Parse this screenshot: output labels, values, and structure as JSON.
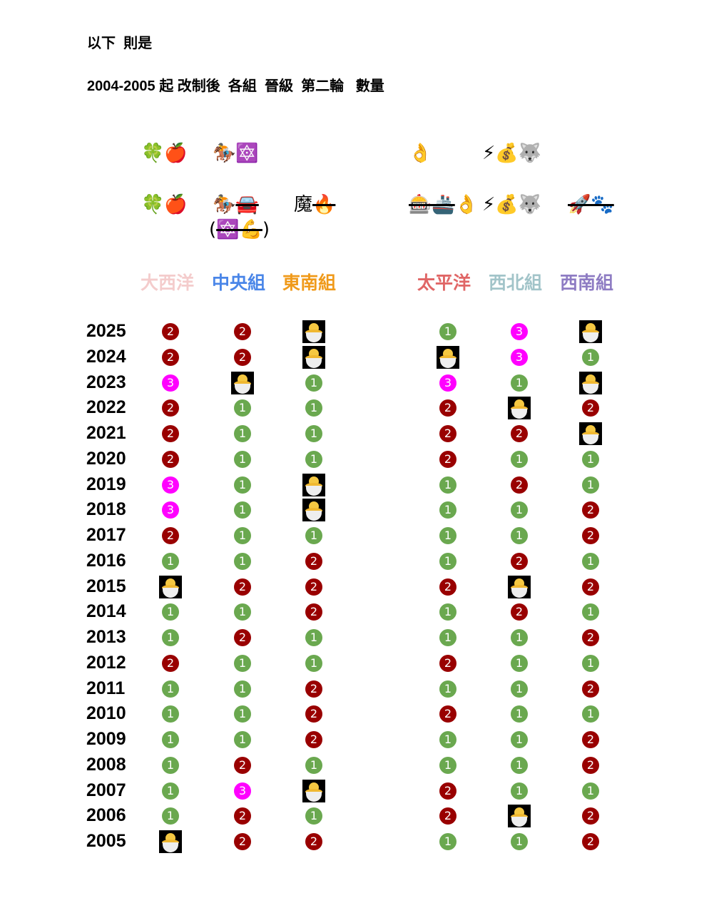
{
  "intro": "以下  則是",
  "subtitle": "2004-2005 起 改制後  各組  晉級  第二輪   數量",
  "colors": {
    "1": "#6aa84f",
    "2": "#990000",
    "3": "#ff00ff",
    "chick_bg": "#000000"
  },
  "legend_rows": [
    [
      [
        {
          "text": "🍀🍎",
          "strike": false
        }
      ],
      [
        {
          "text": "🏇🔯",
          "strike": false
        }
      ],
      [],
      [
        {
          "text": "👌",
          "strike": false
        }
      ],
      [
        {
          "text": "⚡💰🐺",
          "strike": false
        }
      ],
      []
    ],
    [
      [
        {
          "text": "🍀🍎",
          "strike": false
        }
      ],
      [
        {
          "text": "🏇",
          "strike": false
        },
        {
          "text": "🚘",
          "strike": true
        }
      ],
      [
        {
          "text": "魔",
          "strike": false
        },
        {
          "text": "🔥",
          "strike": true
        }
      ],
      [
        {
          "text": "🎰🚢",
          "strike": true
        },
        {
          "text": "👌",
          "strike": false
        }
      ],
      [
        {
          "text": "⚡💰🐺",
          "strike": false
        }
      ],
      [
        {
          "text": "🚀🐾",
          "strike": true
        }
      ]
    ],
    [
      [],
      [
        {
          "text": "(",
          "strike": false
        },
        {
          "text": "🔯💪",
          "strike": true
        },
        {
          "text": ")",
          "strike": false
        }
      ],
      [],
      [],
      [],
      []
    ]
  ],
  "groups": [
    {
      "name": "大西洋",
      "color": "#f4cccc"
    },
    {
      "name": "中央組",
      "color": "#4a86e8"
    },
    {
      "name": "東南組",
      "color": "#f09a1a"
    },
    {
      "name": "太平洋",
      "color": "#e06666"
    },
    {
      "name": "西北組",
      "color": "#a2c4c9"
    },
    {
      "name": "西南組",
      "color": "#8e7cc3"
    }
  ],
  "chick_symbol": "🐣",
  "rows": [
    {
      "year": "2025",
      "values": [
        "2",
        "2",
        "🐣",
        "1",
        "3",
        "🐣"
      ]
    },
    {
      "year": "2024",
      "values": [
        "2",
        "2",
        "🐣",
        "🐣",
        "3",
        "1"
      ]
    },
    {
      "year": "2023",
      "values": [
        "3",
        "🐣",
        "1",
        "3",
        "1",
        "🐣"
      ]
    },
    {
      "year": "2022",
      "values": [
        "2",
        "1",
        "1",
        "2",
        "🐣",
        "2"
      ]
    },
    {
      "year": "2021",
      "values": [
        "2",
        "1",
        "1",
        "2",
        "2",
        "🐣"
      ]
    },
    {
      "year": "2020",
      "values": [
        "2",
        "1",
        "1",
        "2",
        "1",
        "1"
      ]
    },
    {
      "year": "2019",
      "values": [
        "3",
        "1",
        "🐣",
        "1",
        "2",
        "1"
      ]
    },
    {
      "year": "2018",
      "values": [
        "3",
        "1",
        "🐣",
        "1",
        "1",
        "2"
      ]
    },
    {
      "year": "2017",
      "values": [
        "2",
        "1",
        "1",
        "1",
        "1",
        "2"
      ]
    },
    {
      "year": "2016",
      "values": [
        "1",
        "1",
        "2",
        "1",
        "2",
        "1"
      ]
    },
    {
      "year": "2015",
      "values": [
        "🐣",
        "2",
        "2",
        "2",
        "🐣",
        "2"
      ]
    },
    {
      "year": "2014",
      "values": [
        "1",
        "1",
        "2",
        "1",
        "2",
        "1"
      ]
    },
    {
      "year": "2013",
      "values": [
        "1",
        "2",
        "1",
        "1",
        "1",
        "2"
      ]
    },
    {
      "year": "2012",
      "values": [
        "2",
        "1",
        "1",
        "2",
        "1",
        "1"
      ]
    },
    {
      "year": "2011",
      "values": [
        "1",
        "1",
        "2",
        "1",
        "1",
        "2"
      ]
    },
    {
      "year": "2010",
      "values": [
        "1",
        "1",
        "2",
        "2",
        "1",
        "1"
      ]
    },
    {
      "year": "2009",
      "values": [
        "1",
        "1",
        "2",
        "1",
        "1",
        "2"
      ]
    },
    {
      "year": "2008",
      "values": [
        "1",
        "2",
        "1",
        "1",
        "1",
        "2"
      ]
    },
    {
      "year": "2007",
      "values": [
        "1",
        "3",
        "🐣",
        "2",
        "1",
        "1"
      ]
    },
    {
      "year": "2006",
      "values": [
        "1",
        "2",
        "1",
        "2",
        "🐣",
        "2"
      ]
    },
    {
      "year": "2005",
      "values": [
        "🐣",
        "2",
        "2",
        "1",
        "1",
        "2"
      ]
    }
  ]
}
